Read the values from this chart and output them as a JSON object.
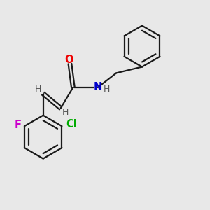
{
  "background_color": "#e8e8e8",
  "bond_color": "#1a1a1a",
  "O_color": "#ee0000",
  "N_color": "#0000cc",
  "F_color": "#cc00cc",
  "Cl_color": "#00aa00",
  "H_color": "#555555",
  "line_width": 1.6,
  "fig_width": 3.0,
  "fig_height": 3.0,
  "dpi": 100,
  "xlim": [
    0,
    10
  ],
  "ylim": [
    0,
    10
  ]
}
